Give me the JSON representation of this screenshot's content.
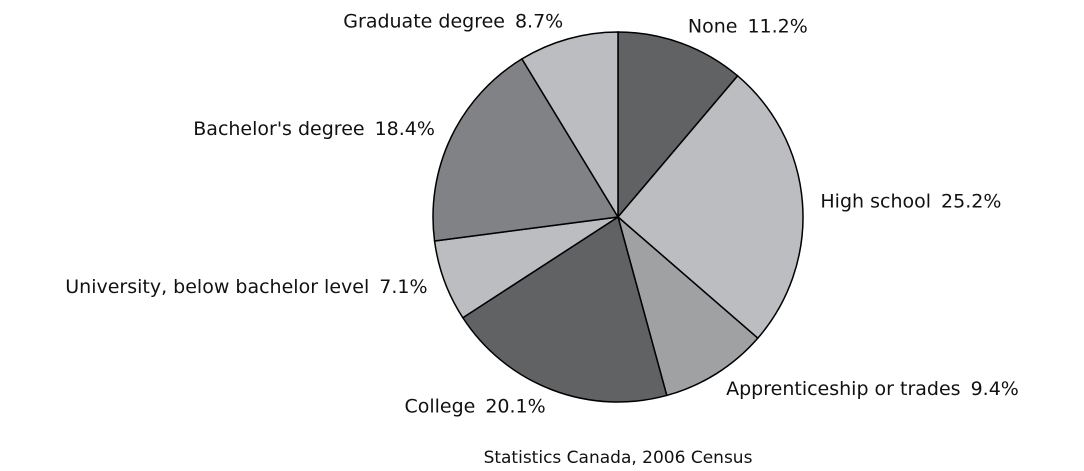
{
  "chart_data": {
    "type": "pie",
    "categories": [
      "None",
      "High school",
      "Apprenticeship or trades",
      "College",
      "University, below bachelor level",
      "Bachelor's degree",
      "Graduate degree"
    ],
    "values": [
      11.2,
      25.2,
      9.4,
      20.1,
      7.1,
      18.4,
      8.7
    ],
    "value_labels": [
      "11.2%",
      "25.2%",
      "9.4%",
      "20.1%",
      "7.1%",
      "18.4%",
      "8.7%"
    ],
    "colors": [
      "#616264",
      "#bcbdc0",
      "#a0a1a3",
      "#616264",
      "#bcbdc0",
      "#818285",
      "#bcbdc0"
    ],
    "source": "Statistics Canada, 2006 Census"
  }
}
